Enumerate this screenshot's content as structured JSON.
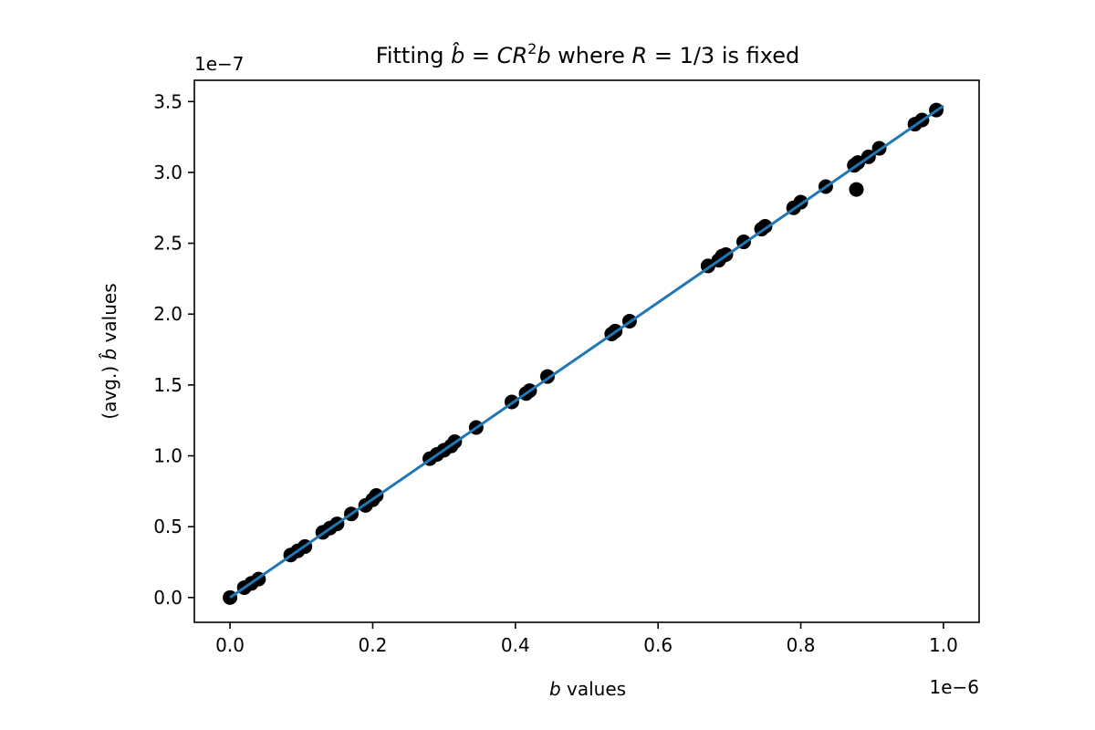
{
  "chart_data": {
    "type": "scatter",
    "title": {
      "prefix": "Fitting ",
      "bhat": "b̂",
      "mid1": " = ",
      "C": "C",
      "R": "R",
      "exp": "2",
      "b": "b",
      "mid2": " where ",
      "R2": "R",
      "mid3": " = 1/3 is fixed"
    },
    "xlabel": {
      "var": "b",
      "text": " values"
    },
    "ylabel": {
      "prefix": "(avg.) ",
      "var": "b̂",
      "text": " values"
    },
    "x_offset_label": "1e−6",
    "y_offset_label": "1e−7",
    "xlim": [
      -0.05,
      1.05
    ],
    "ylim": [
      -0.175,
      3.65
    ],
    "x_ticks": [
      0.0,
      0.2,
      0.4,
      0.6,
      0.8,
      1.0
    ],
    "x_tick_labels": [
      "0.0",
      "0.2",
      "0.4",
      "0.6",
      "0.8",
      "1.0"
    ],
    "y_ticks": [
      0.0,
      0.5,
      1.0,
      1.5,
      2.0,
      2.5,
      3.0,
      3.5
    ],
    "y_tick_labels": [
      "0.0",
      "0.5",
      "1.0",
      "1.5",
      "2.0",
      "2.5",
      "3.0",
      "3.5"
    ],
    "grid": false,
    "scatter_color": "#000000",
    "line_color": "#1f77b4",
    "fit_line": {
      "x": [
        0.0,
        1.0
      ],
      "y": [
        0.0,
        3.47
      ]
    },
    "points": [
      [
        0.0,
        0.0
      ],
      [
        0.02,
        0.07
      ],
      [
        0.03,
        0.1
      ],
      [
        0.04,
        0.13
      ],
      [
        0.085,
        0.3
      ],
      [
        0.095,
        0.33
      ],
      [
        0.105,
        0.36
      ],
      [
        0.13,
        0.46
      ],
      [
        0.14,
        0.49
      ],
      [
        0.15,
        0.52
      ],
      [
        0.17,
        0.59
      ],
      [
        0.19,
        0.65
      ],
      [
        0.2,
        0.69
      ],
      [
        0.205,
        0.72
      ],
      [
        0.28,
        0.98
      ],
      [
        0.29,
        1.01
      ],
      [
        0.3,
        1.04
      ],
      [
        0.31,
        1.07
      ],
      [
        0.315,
        1.1
      ],
      [
        0.345,
        1.2
      ],
      [
        0.395,
        1.38
      ],
      [
        0.415,
        1.44
      ],
      [
        0.42,
        1.46
      ],
      [
        0.445,
        1.56
      ],
      [
        0.535,
        1.86
      ],
      [
        0.54,
        1.88
      ],
      [
        0.56,
        1.95
      ],
      [
        0.67,
        2.34
      ],
      [
        0.685,
        2.38
      ],
      [
        0.69,
        2.41
      ],
      [
        0.695,
        2.42
      ],
      [
        0.72,
        2.51
      ],
      [
        0.745,
        2.6
      ],
      [
        0.75,
        2.62
      ],
      [
        0.79,
        2.75
      ],
      [
        0.8,
        2.79
      ],
      [
        0.835,
        2.9
      ],
      [
        0.875,
        3.05
      ],
      [
        0.88,
        3.07
      ],
      [
        0.878,
        2.88
      ],
      [
        0.895,
        3.11
      ],
      [
        0.91,
        3.17
      ],
      [
        0.96,
        3.34
      ],
      [
        0.97,
        3.37
      ],
      [
        0.99,
        3.44
      ]
    ]
  }
}
